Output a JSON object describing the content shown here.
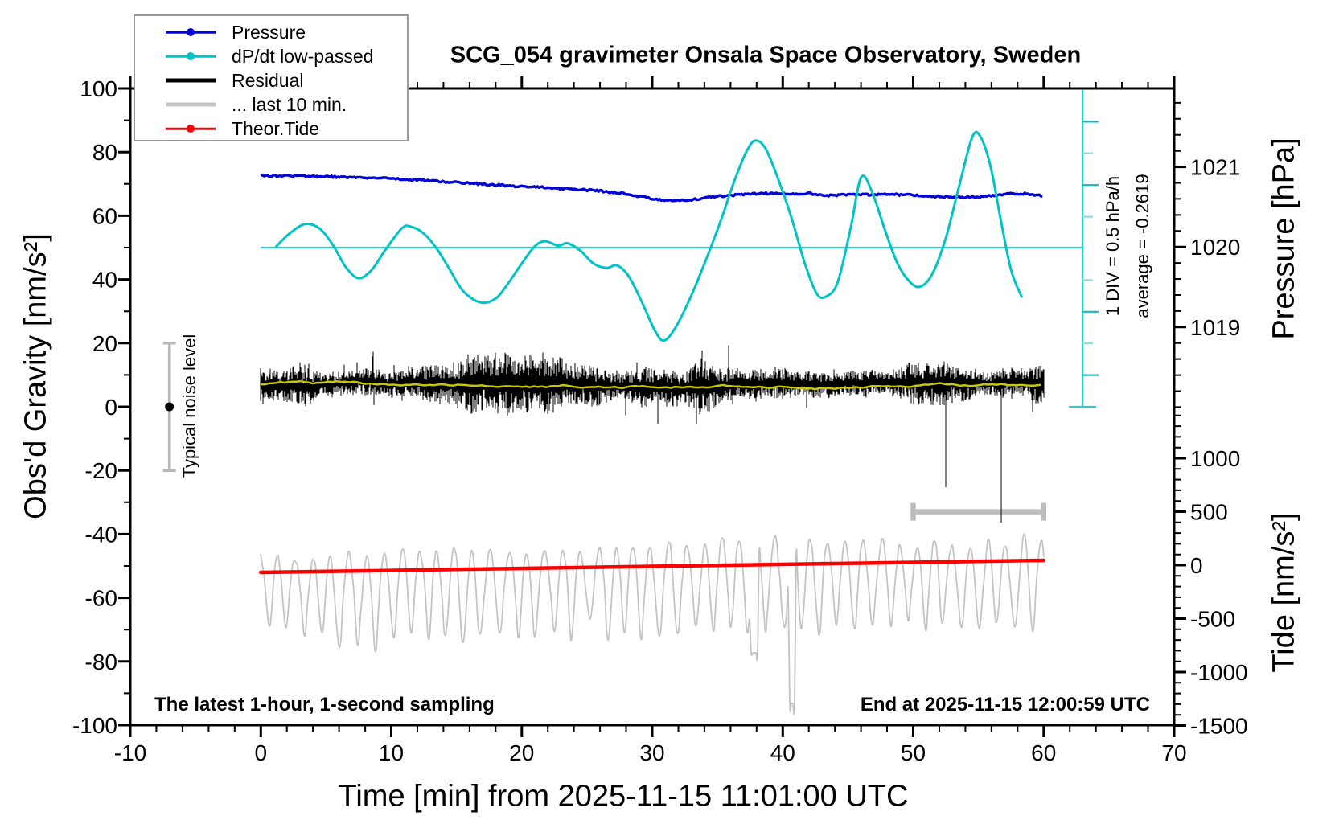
{
  "annotations": {
    "sampling": "The latest 1-hour, 1-second sampling",
    "end_time": "End at 2025-11-15 12:00:59 UTC",
    "noise_label": "Typical noise level",
    "div_scale": "1 DIV = 0.5 hPa/h",
    "average": "average = -0.2619"
  },
  "legend": {
    "items": [
      {
        "label": "Pressure",
        "color": "#0000dd",
        "marker": true,
        "thick": false
      },
      {
        "label": "dP/dt low-passed",
        "color": "#00c3c6",
        "marker": true,
        "thick": false
      },
      {
        "label": "Residual",
        "color": "#000000",
        "marker": false,
        "thick": true
      },
      {
        "label": "... last 10 min.",
        "color": "#c4c4c4",
        "marker": false,
        "thick": true
      },
      {
        "label": "Theor.Tide",
        "color": "#ff0000",
        "marker": true,
        "thick": false
      }
    ]
  },
  "chart_data": {
    "type": "line",
    "title": "SCG_054 gravimeter Onsala Space Observatory, Sweden",
    "x_axis": {
      "label": "Time [min] from 2025-11-15 11:01:00 UTC",
      "min": -10,
      "max": 70,
      "major_step": 10,
      "minor_step": 2,
      "major_ticks": [
        -10,
        0,
        10,
        20,
        30,
        40,
        50,
        60,
        70
      ]
    },
    "y_left": {
      "label": "Obs'd Gravity [nm/s²]",
      "min": -100,
      "max": 100,
      "major_step": 20,
      "minor_step": 10,
      "major_ticks": [
        -100,
        -80,
        -60,
        -40,
        -20,
        0,
        20,
        40,
        60,
        80,
        100
      ]
    },
    "y_right_pressure": {
      "label": "Pressure [hPa]",
      "major_ticks": [
        1019,
        1020,
        1021
      ],
      "minor_step": 0.2,
      "minor_range": [
        1018.0,
        1021.8
      ]
    },
    "y_right_tide": {
      "label": "Tide [nm/s²]",
      "major_ticks": [
        1000,
        500,
        0,
        -500,
        -1000,
        -1500
      ],
      "minor_step": 100,
      "minor_range": [
        -1400,
        1400
      ]
    },
    "series": {
      "pressure": {
        "name": "Pressure",
        "units": "hPa",
        "color": "#0000dd",
        "points": [
          [
            0,
            1020.89
          ],
          [
            3,
            1020.885
          ],
          [
            6,
            1020.875
          ],
          [
            9,
            1020.86
          ],
          [
            12,
            1020.835
          ],
          [
            15,
            1020.805
          ],
          [
            18,
            1020.775
          ],
          [
            21,
            1020.75
          ],
          [
            24,
            1020.72
          ],
          [
            26,
            1020.7
          ],
          [
            28,
            1020.665
          ],
          [
            30,
            1020.6
          ],
          [
            31.5,
            1020.575
          ],
          [
            33,
            1020.59
          ],
          [
            34.5,
            1020.625
          ],
          [
            36,
            1020.645
          ],
          [
            37.5,
            1020.665
          ],
          [
            39,
            1020.67
          ],
          [
            40.5,
            1020.665
          ],
          [
            42,
            1020.67
          ],
          [
            43.5,
            1020.645
          ],
          [
            45,
            1020.65
          ],
          [
            46.5,
            1020.655
          ],
          [
            48,
            1020.66
          ],
          [
            49.5,
            1020.65
          ],
          [
            51,
            1020.635
          ],
          [
            52.5,
            1020.63
          ],
          [
            54,
            1020.615
          ],
          [
            55,
            1020.62
          ],
          [
            56,
            1020.645
          ],
          [
            57.5,
            1020.67
          ],
          [
            58.5,
            1020.665
          ],
          [
            60,
            1020.64
          ]
        ]
      },
      "dpdt": {
        "name": "dP/dt low-passed",
        "units": "hPa/h",
        "color": "#00c3c6",
        "scale_note": "1 DIV = 0.5 hPa/h",
        "average_hpa_per_h": -0.2619,
        "zero_line": true,
        "points": [
          [
            1.2,
            0.02
          ],
          [
            2.2,
            0.22
          ],
          [
            3.4,
            0.37
          ],
          [
            4.5,
            0.3
          ],
          [
            5.5,
            0.05
          ],
          [
            6.5,
            -0.3
          ],
          [
            7.5,
            -0.48
          ],
          [
            8.5,
            -0.35
          ],
          [
            9.5,
            -0.05
          ],
          [
            10.8,
            0.3
          ],
          [
            11.5,
            0.33
          ],
          [
            12.5,
            0.22
          ],
          [
            13.5,
            -0.02
          ],
          [
            14.5,
            -0.35
          ],
          [
            15.5,
            -0.68
          ],
          [
            16.8,
            -0.86
          ],
          [
            18,
            -0.8
          ],
          [
            19,
            -0.55
          ],
          [
            20,
            -0.25
          ],
          [
            21,
            0.02
          ],
          [
            21.8,
            0.1
          ],
          [
            22.8,
            0.03
          ],
          [
            23.5,
            0.07
          ],
          [
            24.5,
            -0.05
          ],
          [
            25.5,
            -0.25
          ],
          [
            26.5,
            -0.32
          ],
          [
            27.3,
            -0.28
          ],
          [
            28.2,
            -0.45
          ],
          [
            29.2,
            -0.85
          ],
          [
            30.2,
            -1.3
          ],
          [
            30.9,
            -1.46
          ],
          [
            31.8,
            -1.25
          ],
          [
            33,
            -0.75
          ],
          [
            34.2,
            -0.15
          ],
          [
            35.3,
            0.45
          ],
          [
            36.3,
            1.05
          ],
          [
            37.2,
            1.5
          ],
          [
            37.9,
            1.68
          ],
          [
            38.7,
            1.55
          ],
          [
            39.7,
            1.05
          ],
          [
            40.7,
            0.45
          ],
          [
            41.7,
            -0.25
          ],
          [
            42.6,
            -0.72
          ],
          [
            43.3,
            -0.77
          ],
          [
            44.2,
            -0.55
          ],
          [
            45.2,
            0.3
          ],
          [
            46,
            1.1
          ],
          [
            46.8,
            0.9
          ],
          [
            47.8,
            0.3
          ],
          [
            48.8,
            -0.25
          ],
          [
            49.8,
            -0.55
          ],
          [
            50.6,
            -0.61
          ],
          [
            51.5,
            -0.4
          ],
          [
            52.5,
            0.15
          ],
          [
            53.5,
            0.95
          ],
          [
            54.5,
            1.72
          ],
          [
            55.1,
            1.76
          ],
          [
            55.9,
            1.3
          ],
          [
            56.7,
            0.45
          ],
          [
            57.5,
            -0.35
          ],
          [
            58.3,
            -0.77
          ]
        ]
      },
      "residual": {
        "name": "Residual",
        "units": "nm/s2",
        "color": "#000000",
        "mean_nms2": 7,
        "typical_amplitude_nms2": 10,
        "time_span_min": [
          0,
          60
        ],
        "smoothed_color": "#c8c800"
      },
      "residual_last10": {
        "name": "... last 10 min.",
        "units": "nm/s2",
        "color": "#c4c4c4",
        "window_min": [
          50,
          60
        ],
        "display_center_gravity": -56
      },
      "tide": {
        "name": "Theor.Tide",
        "units": "nm/s2",
        "color": "#ff0000",
        "points": [
          [
            0,
            -68
          ],
          [
            15,
            -40
          ],
          [
            30,
            -11
          ],
          [
            45,
            17
          ],
          [
            60,
            45
          ]
        ]
      }
    },
    "noise_bar": {
      "label": "Typical noise level",
      "center_value": 0,
      "half_range": 20,
      "t_min": -7,
      "color": "#b8b8b8"
    },
    "last10_bar": {
      "t_start": 50,
      "t_end": 60,
      "gravity_level": -33,
      "color": "#bdbdbd"
    },
    "div_bar": {
      "color": "#2fc9c9",
      "light_tick_color": "#8adada",
      "ticks_gravity_step": 10,
      "zero_at_gravity": 50
    }
  }
}
